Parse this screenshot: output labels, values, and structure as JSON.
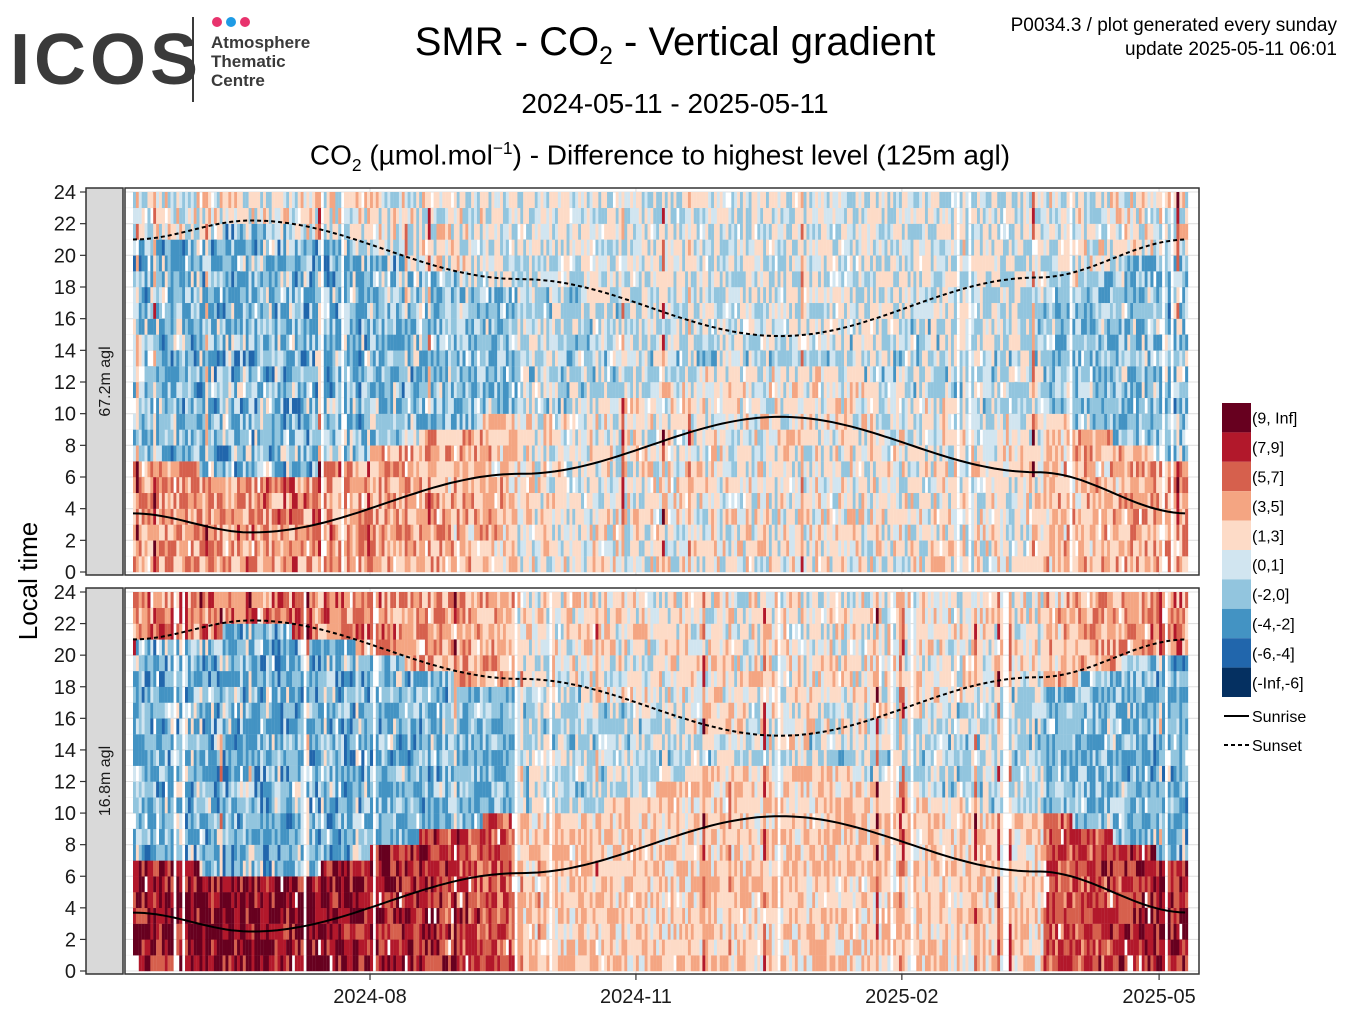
{
  "logo": {
    "wordmark": "ICOS",
    "lines": [
      "Atmosphere",
      "Thematic",
      "Centre"
    ],
    "dot_colors": [
      "#e8336d",
      "#1e9be5",
      "#e8336d"
    ]
  },
  "header": {
    "title_pre": "SMR - CO",
    "title_sub": "2",
    "title_post": " - Vertical gradient",
    "date_range": "2024-05-11 - 2025-05-11",
    "subtitle_pre": "CO",
    "subtitle_sub": "2",
    "subtitle_mid": " (µmol.mol",
    "subtitle_sup": "−1",
    "subtitle_post": ") - Difference to highest level (125m agl)",
    "meta_line1": "P0034.3 / plot generated every sunday",
    "meta_line2": "update  2025-05-11 06:01"
  },
  "chart_data": {
    "type": "heatmap",
    "x_range": [
      "2024-05-11",
      "2025-05-11"
    ],
    "x_ticks": [
      "2024-08",
      "2024-11",
      "2025-02",
      "2025-05"
    ],
    "y_label": "Local time",
    "y_range": [
      0,
      24
    ],
    "y_ticks": [
      0,
      2,
      4,
      6,
      8,
      10,
      12,
      14,
      16,
      18,
      20,
      22,
      24
    ],
    "panels": [
      "67.2m agl",
      "16.8m agl"
    ],
    "legend": {
      "position": "right",
      "bins": [
        {
          "label": "(9, Inf]",
          "color": "#67001f"
        },
        {
          "label": "(7,9]",
          "color": "#b2182b"
        },
        {
          "label": "(5,7]",
          "color": "#d6604d"
        },
        {
          "label": "(3,5]",
          "color": "#f4a582"
        },
        {
          "label": "(1,3]",
          "color": "#fddbc7"
        },
        {
          "label": "(0,1]",
          "color": "#d1e5f0"
        },
        {
          "label": "(-2,0]",
          "color": "#92c5de"
        },
        {
          "label": "(-4,-2]",
          "color": "#4393c3"
        },
        {
          "label": "(-6,-4]",
          "color": "#2166ac"
        },
        {
          "label": "(-Inf,-6]",
          "color": "#053061"
        }
      ],
      "lines": [
        {
          "label": "Sunrise",
          "style": "solid"
        },
        {
          "label": "Sunset",
          "style": "dashed"
        }
      ]
    },
    "sunrise": {
      "dates": [
        "2024-05-11",
        "2024-06-21",
        "2024-09-22",
        "2024-12-21",
        "2025-03-20",
        "2025-05-11"
      ],
      "hours": [
        3.7,
        2.5,
        6.2,
        9.8,
        6.3,
        3.7
      ]
    },
    "sunset": {
      "dates": [
        "2024-05-11",
        "2024-06-21",
        "2024-09-22",
        "2024-12-21",
        "2025-03-20",
        "2025-05-11"
      ],
      "hours": [
        21.0,
        22.2,
        18.5,
        14.9,
        18.6,
        21.0
      ]
    },
    "grid": true
  }
}
